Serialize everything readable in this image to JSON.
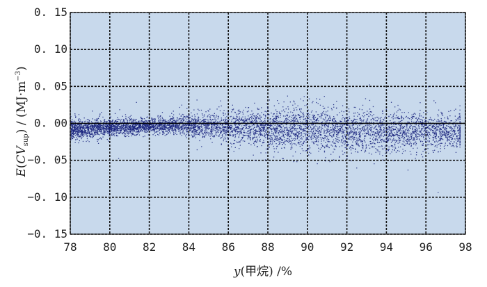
{
  "chart_data": {
    "type": "scatter",
    "xlabel_var": "y",
    "xlabel_rest": "(甲烷) /%",
    "ylabel_var": "E",
    "ylabel_open": "(",
    "ylabel_cv": "CV",
    "ylabel_sub": "sup",
    "ylabel_close": ") / (MJ·m",
    "ylabel_sup": "−3",
    "ylabel_end": ")",
    "xlim": [
      78,
      98
    ],
    "ylim": [
      -0.15,
      0.15
    ],
    "x_ticks": [
      "78",
      "80",
      "82",
      "84",
      "86",
      "88",
      "90",
      "92",
      "94",
      "96",
      "98"
    ],
    "y_ticks": [
      "0. 15",
      "0. 10",
      "0. 05",
      "0. 00",
      "−0. 05",
      "−0. 10",
      "−0. 15"
    ],
    "grid": true,
    "point_count": 6000,
    "envelope": [
      {
        "x": 78,
        "center": -0.008,
        "half_width": 0.012
      },
      {
        "x": 80,
        "center": -0.005,
        "half_width": 0.01
      },
      {
        "x": 82,
        "center": -0.003,
        "half_width": 0.009
      },
      {
        "x": 84,
        "center": -0.002,
        "half_width": 0.012
      },
      {
        "x": 86,
        "center": -0.004,
        "half_width": 0.018
      },
      {
        "x": 88,
        "center": -0.006,
        "half_width": 0.024
      },
      {
        "x": 90,
        "center": -0.008,
        "half_width": 0.027
      },
      {
        "x": 92,
        "center": -0.01,
        "half_width": 0.027
      },
      {
        "x": 94,
        "center": -0.011,
        "half_width": 0.025
      },
      {
        "x": 96,
        "center": -0.01,
        "half_width": 0.022
      },
      {
        "x": 98,
        "center": -0.01,
        "half_width": 0.02
      }
    ],
    "colors": {
      "plot_bg": "#c8d9ec",
      "points": "#1a237e",
      "grid": "#111111"
    }
  }
}
